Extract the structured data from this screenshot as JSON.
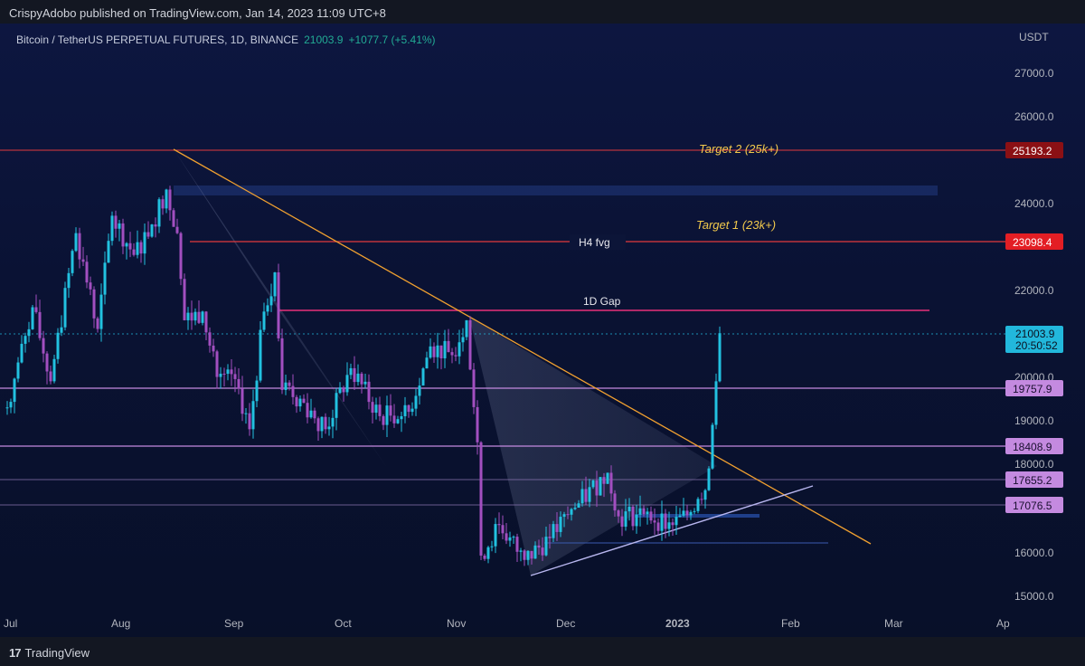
{
  "publisher_text": "CrispyAdobo published on TradingView.com, Jan 14, 2023 11:09 UTC+8",
  "symbol": {
    "title": "Bitcoin / TetherUS PERPETUAL FUTURES, 1D, BINANCE",
    "price": "21003.9",
    "change": "+1077.7 (+5.41%)"
  },
  "footer": {
    "brand": "TradingView",
    "logo_mark": "17"
  },
  "colors": {
    "background": "#131722",
    "panel_top": "#0d1640",
    "up": "#22c1e0",
    "down": "#a24fc0",
    "downtrend": "#f0a030",
    "level_red": "#e03a3e",
    "level_purple": "#c48ae0",
    "price_tag": "#22b8dc"
  },
  "chart_data": {
    "type": "candlestick",
    "currency_label": "USDT",
    "ylim": [
      14800,
      27800
    ],
    "y_ticks": [
      "27000.0",
      "26000.0",
      "24000.0",
      "22000.0",
      "20000.0",
      "19000.0",
      "18000.0",
      "16000.0",
      "15000.0"
    ],
    "x_ticks": [
      "Jul",
      "Aug",
      "Sep",
      "Oct",
      "Nov",
      "Dec",
      "2023",
      "Feb",
      "Mar",
      "Ap"
    ],
    "last_price": {
      "value": "21003.9",
      "countdown": "20:50:52"
    },
    "horizontal_levels": [
      {
        "price": 25193.2,
        "label": "25193.2",
        "style": "red"
      },
      {
        "price": 23098.4,
        "label": "23098.4",
        "style": "red"
      },
      {
        "price": 19757.9,
        "label": "19757.9",
        "style": "purple"
      },
      {
        "price": 18408.9,
        "label": "18408.9",
        "style": "purple"
      },
      {
        "price": 17655.2,
        "label": "17655.2",
        "style": "purple"
      },
      {
        "price": 17076.5,
        "label": "17076.5",
        "style": "purple"
      }
    ],
    "annotations": [
      "Target 2 (25k+)",
      "Target 1 (23k+)",
      "H4 fvg",
      "1D Gap"
    ],
    "ohlc_anchors": [
      {
        "date": "2022-07-01",
        "close": 19300
      },
      {
        "date": "2022-07-08",
        "close": 21600
      },
      {
        "date": "2022-07-13",
        "close": 19900
      },
      {
        "date": "2022-07-20",
        "close": 23300
      },
      {
        "date": "2022-07-26",
        "close": 21100
      },
      {
        "date": "2022-07-30",
        "close": 23700
      },
      {
        "date": "2022-08-05",
        "close": 22800
      },
      {
        "date": "2022-08-10",
        "close": 23500
      },
      {
        "date": "2022-08-14",
        "close": 24300
      },
      {
        "date": "2022-08-17",
        "close": 23300
      },
      {
        "date": "2022-08-19",
        "close": 21300
      },
      {
        "date": "2022-08-24",
        "close": 21500
      },
      {
        "date": "2022-08-28",
        "close": 20000
      },
      {
        "date": "2022-09-02",
        "close": 19950
      },
      {
        "date": "2022-09-06",
        "close": 18800
      },
      {
        "date": "2022-09-10",
        "close": 21500
      },
      {
        "date": "2022-09-13",
        "close": 22400
      },
      {
        "date": "2022-09-15",
        "close": 19700
      },
      {
        "date": "2022-09-20",
        "close": 19500
      },
      {
        "date": "2022-09-27",
        "close": 18800
      },
      {
        "date": "2022-10-04",
        "close": 20200
      },
      {
        "date": "2022-10-12",
        "close": 19100
      },
      {
        "date": "2022-10-20",
        "close": 19200
      },
      {
        "date": "2022-10-26",
        "close": 20700
      },
      {
        "date": "2022-11-01",
        "close": 20500
      },
      {
        "date": "2022-11-05",
        "close": 21300
      },
      {
        "date": "2022-11-08",
        "close": 18500
      },
      {
        "date": "2022-11-09",
        "close": 15900
      },
      {
        "date": "2022-11-14",
        "close": 16600
      },
      {
        "date": "2022-11-21",
        "close": 15800
      },
      {
        "date": "2022-11-28",
        "close": 16300
      },
      {
        "date": "2022-12-05",
        "close": 17000
      },
      {
        "date": "2022-12-14",
        "close": 17800
      },
      {
        "date": "2022-12-17",
        "close": 16800
      },
      {
        "date": "2022-12-24",
        "close": 16850
      },
      {
        "date": "2023-01-01",
        "close": 16600
      },
      {
        "date": "2023-01-06",
        "close": 16900
      },
      {
        "date": "2023-01-08",
        "close": 17200
      },
      {
        "date": "2023-01-10",
        "close": 17400
      },
      {
        "date": "2023-01-11",
        "close": 17900
      },
      {
        "date": "2023-01-12",
        "close": 18900
      },
      {
        "date": "2023-01-13",
        "close": 19900
      },
      {
        "date": "2023-01-14",
        "close": 21003.9
      }
    ]
  }
}
